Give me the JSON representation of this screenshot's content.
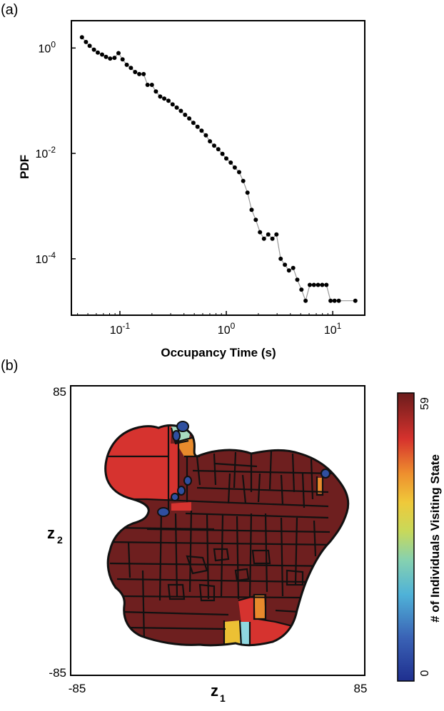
{
  "panel_labels": {
    "a": "(a)",
    "b": "(b)"
  },
  "chart_data": [
    {
      "type": "line",
      "scale": "log-log",
      "title": "",
      "xlabel": "Occupancy Time (s)",
      "ylabel": "PDF",
      "xlim": [
        0.035,
        20
      ],
      "ylim": [
        8.5e-06,
        3.3
      ],
      "xticks": [
        {
          "value": 0.1,
          "base": "10",
          "exp": "-1"
        },
        {
          "value": 1,
          "base": "10",
          "exp": "0"
        },
        {
          "value": 10,
          "base": "10",
          "exp": "1"
        }
      ],
      "yticks": [
        {
          "value": 1,
          "base": "10",
          "exp": "0"
        },
        {
          "value": 0.01,
          "base": "10",
          "exp": "-2"
        },
        {
          "value": 0.0001,
          "base": "10",
          "exp": "-4"
        }
      ],
      "series": [
        {
          "name": "PDF",
          "marker_color": "#000000",
          "line_color": "#999999",
          "points": [
            [
              0.044,
              1.6
            ],
            [
              0.048,
              1.3
            ],
            [
              0.052,
              1.1
            ],
            [
              0.057,
              0.93
            ],
            [
              0.062,
              0.82
            ],
            [
              0.068,
              0.75
            ],
            [
              0.074,
              0.68
            ],
            [
              0.081,
              0.63
            ],
            [
              0.089,
              0.65
            ],
            [
              0.097,
              0.8
            ],
            [
              0.106,
              0.61
            ],
            [
              0.116,
              0.48
            ],
            [
              0.127,
              0.42
            ],
            [
              0.139,
              0.35
            ],
            [
              0.152,
              0.32
            ],
            [
              0.167,
              0.32
            ],
            [
              0.182,
              0.2
            ],
            [
              0.2,
              0.2
            ],
            [
              0.218,
              0.15
            ],
            [
              0.239,
              0.12
            ],
            [
              0.261,
              0.11
            ],
            [
              0.286,
              0.1
            ],
            [
              0.313,
              0.085
            ],
            [
              0.342,
              0.074
            ],
            [
              0.374,
              0.064
            ],
            [
              0.41,
              0.054
            ],
            [
              0.448,
              0.046
            ],
            [
              0.49,
              0.038
            ],
            [
              0.536,
              0.032
            ],
            [
              0.586,
              0.027
            ],
            [
              0.642,
              0.022
            ],
            [
              0.702,
              0.017
            ],
            [
              0.768,
              0.014
            ],
            [
              0.84,
              0.012
            ],
            [
              0.919,
              0.0098
            ],
            [
              1.0,
              0.008
            ],
            [
              1.1,
              0.0067
            ],
            [
              1.2,
              0.0054
            ],
            [
              1.32,
              0.0044
            ],
            [
              1.44,
              0.003
            ],
            [
              1.58,
              0.0018
            ],
            [
              1.73,
              0.00085
            ],
            [
              1.89,
              0.00055
            ],
            [
              2.07,
              0.00032
            ],
            [
              2.26,
              0.00024
            ],
            [
              2.48,
              0.00029
            ],
            [
              2.71,
              0.00024
            ],
            [
              2.96,
              0.00029
            ],
            [
              3.24,
              0.0001
            ],
            [
              3.55,
              7.7e-05
            ],
            [
              3.88,
              6e-05
            ],
            [
              4.25,
              6.7e-05
            ],
            [
              4.65,
              4e-05
            ],
            [
              5.08,
              2.6e-05
            ],
            [
              5.56,
              1.6e-05
            ],
            [
              6.09,
              3.2e-05
            ],
            [
              6.66,
              3.2e-05
            ],
            [
              7.28,
              3.2e-05
            ],
            [
              7.97,
              3.2e-05
            ],
            [
              8.72,
              3.2e-05
            ],
            [
              9.54,
              1.6e-05
            ],
            [
              10.4,
              1.6e-05
            ],
            [
              11.4,
              1.6e-05
            ],
            [
              16.3,
              1.6e-05
            ]
          ]
        }
      ]
    },
    {
      "type": "heatmap",
      "subtype": "state-space map (segmented regions)",
      "title": "",
      "xlabel_main": "z",
      "xlabel_sub": "1",
      "ylabel_main": "z",
      "ylabel_sub": "2",
      "xlim": [
        -85,
        85
      ],
      "ylim": [
        -85,
        85
      ],
      "xtick_labels": [
        "-85",
        "85"
      ],
      "ytick_labels": [
        "85",
        "-85"
      ],
      "colorbar": {
        "label": "# of Individuals Visiting State",
        "min": 0,
        "max": 59,
        "min_label": "0",
        "max_label": "59",
        "colormap": "jet-like (blue to dark red)"
      },
      "default_value": 59,
      "region_values": [
        {
          "name": "large-left-red-region",
          "value": 52
        },
        {
          "name": "top-orange-region",
          "value": 44
        },
        {
          "name": "top-light-green-region",
          "value": 24
        },
        {
          "name": "top-blue-region-1",
          "value": 6
        },
        {
          "name": "top-blue-region-2",
          "value": 4
        },
        {
          "name": "left-corridor-red-regions",
          "value": 50
        },
        {
          "name": "left-corridor-blue-regions",
          "value": 5
        },
        {
          "name": "right-blue-region",
          "value": 6
        },
        {
          "name": "right-orange-region",
          "value": 42
        },
        {
          "name": "bottom-yellow-region",
          "value": 36
        },
        {
          "name": "bottom-cyan-region",
          "value": 20
        },
        {
          "name": "bottom-red-region",
          "value": 52
        },
        {
          "name": "bottom-orange-region",
          "value": 44
        }
      ],
      "colors": {
        "dark_red": "#6e1f1f",
        "red": "#d6332f",
        "orange": "#e88a2c",
        "yellow": "#ecc034",
        "light_green": "#a8dcc0",
        "cyan": "#8fd7e0",
        "blue": "#2f4f9f"
      }
    }
  ]
}
